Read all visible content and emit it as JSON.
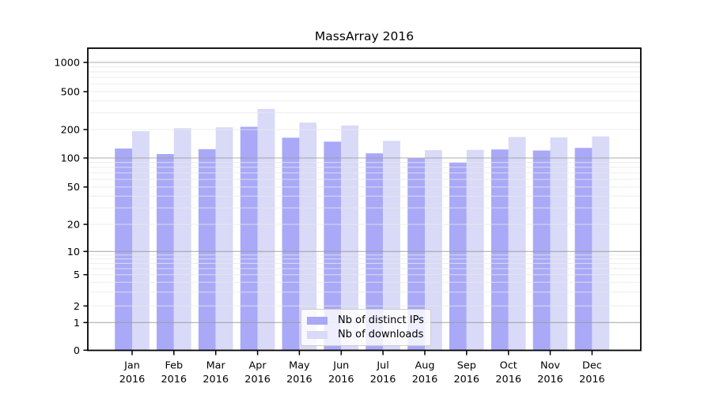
{
  "title": "MassArray 2016",
  "legend": {
    "items": [
      {
        "label": "Nb of distinct IPs",
        "color": "#a9a9f8"
      },
      {
        "label": "Nb of downloads",
        "color": "#d9d9f8"
      }
    ]
  },
  "colors": {
    "distinct_ips": "#a9a9f8",
    "downloads": "#d9d9f8",
    "axis": "#000000",
    "tick_text": "#000000",
    "grid_major": "#9a9a9a",
    "grid_minor": "#e9e9e9",
    "legend_border": "#cccccc"
  },
  "chart_data": {
    "type": "bar",
    "title": "MassArray 2016",
    "categories": [
      "Jan 2016",
      "Feb 2016",
      "Mar 2016",
      "Apr 2016",
      "May 2016",
      "Jun 2016",
      "Jul 2016",
      "Aug 2016",
      "Sep 2016",
      "Oct 2016",
      "Nov 2016",
      "Dec 2016"
    ],
    "series": [
      {
        "name": "Nb of distinct IPs",
        "values": [
          126,
          110,
          124,
          214,
          164,
          149,
          112,
          99,
          90,
          123,
          120,
          128
        ]
      },
      {
        "name": "Nb of downloads",
        "values": [
          192,
          207,
          211,
          330,
          236,
          221,
          152,
          121,
          122,
          167,
          165,
          169
        ]
      }
    ],
    "xlabel": "",
    "ylabel": "",
    "yscale": "log-like with zero baseline (symlog)",
    "y_ticks": [
      0,
      1,
      2,
      5,
      10,
      20,
      50,
      100,
      200,
      500,
      1000
    ],
    "ylim": [
      0,
      1500
    ],
    "grid": true,
    "legend_position": "inside lower-center"
  }
}
